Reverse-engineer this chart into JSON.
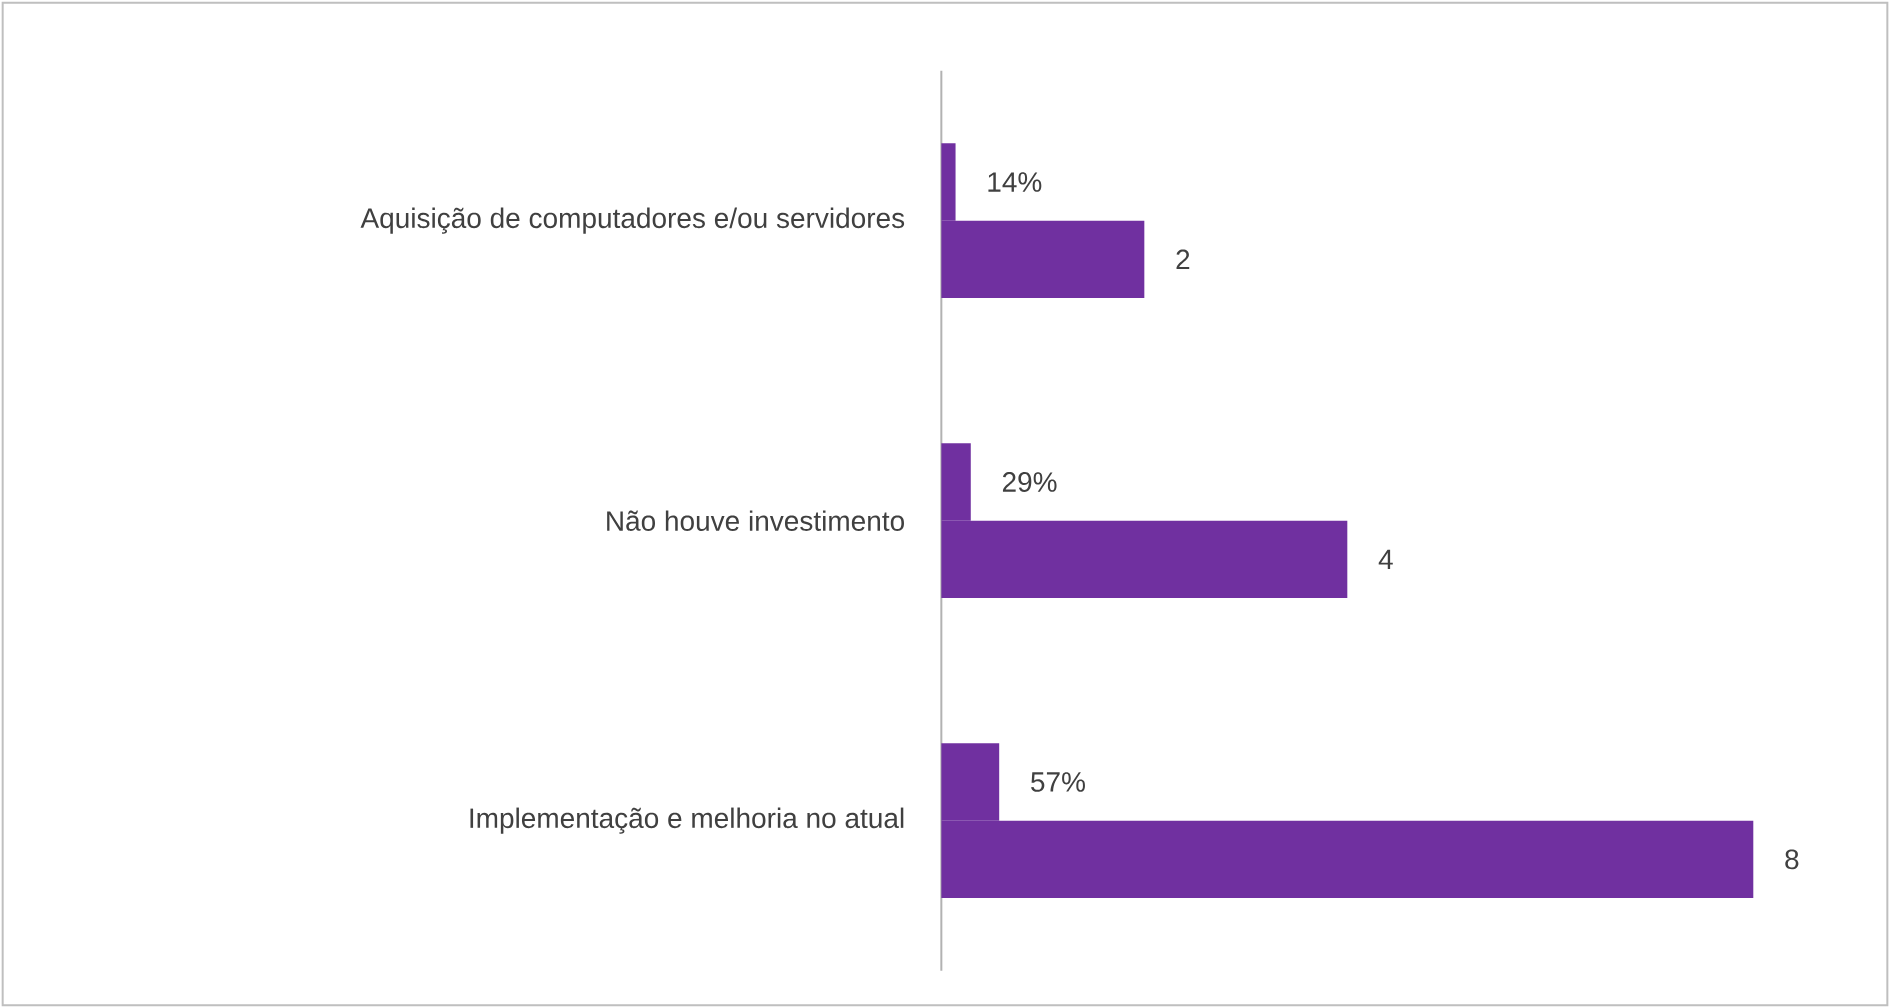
{
  "chart_data": {
    "type": "bar",
    "orientation": "horizontal",
    "categories": [
      "Aquisição de computadores e/ou servidores",
      "Não houve investimento",
      "Implementação e melhoria no atual"
    ],
    "series": [
      {
        "color": "#7030a0",
        "values": [
          0.14,
          0.29,
          0.57
        ],
        "value_labels": [
          "14%",
          "29%",
          "57%"
        ]
      },
      {
        "color": "#7030a0",
        "values": [
          2,
          4,
          8
        ],
        "value_labels": [
          "2",
          "4",
          "8"
        ]
      }
    ],
    "tick_labels": "y"
  }
}
